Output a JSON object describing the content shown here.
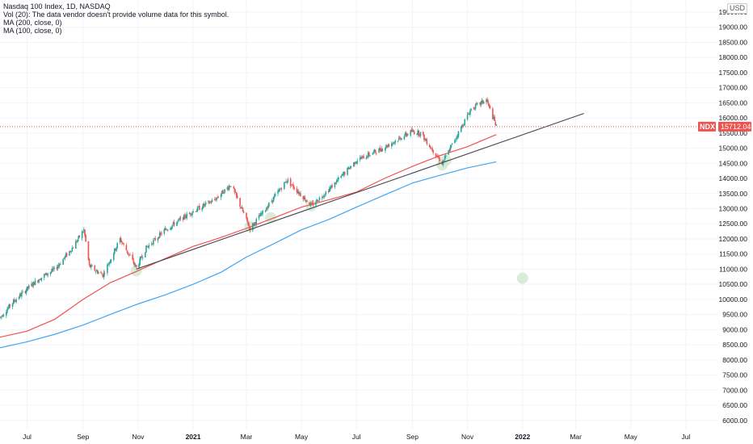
{
  "legend": {
    "title": "Nasdaq 100 Index, 1D, NASDAQ",
    "volume_note": "Vol (20): The data vendor doesn't provide volume data for this symbol.",
    "ma200": "MA (200, close, 0)",
    "ma100": "MA (100, close, 0)"
  },
  "currency": "USD",
  "price_tag": {
    "symbol": "NDX",
    "value": "15712.04"
  },
  "colors": {
    "up": "#26a69a",
    "down": "#ef5350",
    "ma100": "#ef5350",
    "ma200": "#42a5f5",
    "trendline": "#434651",
    "highlight": "#c8e6c9",
    "grid": "#f0f3fa",
    "axis_text": "#131722"
  },
  "chart_data": {
    "type": "candlestick",
    "title": "Nasdaq 100 Index, 1D, NASDAQ",
    "x_tick_labels": [
      "Jul",
      "Sep",
      "Nov",
      "2021",
      "Mar",
      "May",
      "Jul",
      "Sep",
      "Nov",
      "2022",
      "Mar",
      "May",
      "Jul"
    ],
    "y_tick_labels": [
      "6000.00",
      "6500.00",
      "7000.00",
      "7500.00",
      "8000.00",
      "8500.00",
      "9000.00",
      "9500.00",
      "10000.00",
      "10500.00",
      "11000.00",
      "11500.00",
      "12000.00",
      "12500.00",
      "13000.00",
      "13500.00",
      "14000.00",
      "14500.00",
      "15000.00",
      "15500.00",
      "16000.00",
      "16500.00",
      "17000.00",
      "17500.00",
      "18000.00",
      "18500.00",
      "19000.00",
      "19500.00"
    ],
    "y_ticks": [
      6000,
      6500,
      7000,
      7500,
      8000,
      8500,
      9000,
      9500,
      10000,
      10500,
      11000,
      11500,
      12000,
      12500,
      13000,
      13500,
      14000,
      14500,
      15000,
      15500,
      16000,
      16500,
      17000,
      17500,
      18000,
      18500,
      19000,
      19500
    ],
    "x_range": [
      "2020-06-01",
      "2022-08-05"
    ],
    "ylim": [
      5700,
      19900
    ],
    "last_price": 15712.04,
    "close_path": [
      {
        "date": "2020-06-01",
        "v": 9400
      },
      {
        "date": "2020-06-15",
        "v": 9900
      },
      {
        "date": "2020-07-01",
        "v": 10350
      },
      {
        "date": "2020-07-15",
        "v": 10700
      },
      {
        "date": "2020-08-01",
        "v": 11000
      },
      {
        "date": "2020-08-20",
        "v": 11700
      },
      {
        "date": "2020-09-02",
        "v": 12300
      },
      {
        "date": "2020-09-08",
        "v": 11100
      },
      {
        "date": "2020-09-23",
        "v": 10800
      },
      {
        "date": "2020-10-12",
        "v": 12000
      },
      {
        "date": "2020-10-30",
        "v": 11050
      },
      {
        "date": "2020-11-10",
        "v": 11700
      },
      {
        "date": "2020-12-01",
        "v": 12300
      },
      {
        "date": "2020-12-31",
        "v": 12900
      },
      {
        "date": "2021-01-25",
        "v": 13300
      },
      {
        "date": "2021-02-12",
        "v": 13800
      },
      {
        "date": "2021-03-05",
        "v": 12350
      },
      {
        "date": "2021-03-20",
        "v": 12900
      },
      {
        "date": "2021-04-15",
        "v": 13950
      },
      {
        "date": "2021-05-12",
        "v": 13100
      },
      {
        "date": "2021-06-01",
        "v": 13650
      },
      {
        "date": "2021-07-01",
        "v": 14600
      },
      {
        "date": "2021-07-30",
        "v": 15000
      },
      {
        "date": "2021-08-31",
        "v": 15550
      },
      {
        "date": "2021-09-10",
        "v": 15500
      },
      {
        "date": "2021-10-04",
        "v": 14500
      },
      {
        "date": "2021-10-20",
        "v": 15400
      },
      {
        "date": "2021-11-05",
        "v": 16300
      },
      {
        "date": "2021-11-22",
        "v": 16600
      },
      {
        "date": "2021-12-03",
        "v": 15712
      }
    ],
    "series": [
      {
        "name": "MA (100, close, 0)",
        "points": [
          {
            "date": "2020-06-01",
            "v": 8750
          },
          {
            "date": "2020-07-01",
            "v": 8950
          },
          {
            "date": "2020-08-01",
            "v": 9350
          },
          {
            "date": "2020-09-01",
            "v": 10000
          },
          {
            "date": "2020-10-01",
            "v": 10550
          },
          {
            "date": "2020-11-01",
            "v": 10950
          },
          {
            "date": "2020-12-01",
            "v": 11350
          },
          {
            "date": "2021-01-01",
            "v": 11750
          },
          {
            "date": "2021-02-01",
            "v": 12050
          },
          {
            "date": "2021-03-01",
            "v": 12350
          },
          {
            "date": "2021-04-01",
            "v": 12700
          },
          {
            "date": "2021-05-01",
            "v": 13050
          },
          {
            "date": "2021-06-01",
            "v": 13300
          },
          {
            "date": "2021-07-01",
            "v": 13550
          },
          {
            "date": "2021-08-01",
            "v": 14000
          },
          {
            "date": "2021-09-01",
            "v": 14400
          },
          {
            "date": "2021-10-01",
            "v": 14750
          },
          {
            "date": "2021-11-01",
            "v": 15050
          },
          {
            "date": "2021-12-03",
            "v": 15450
          }
        ]
      },
      {
        "name": "MA (200, close, 0)",
        "points": [
          {
            "date": "2020-06-01",
            "v": 8400
          },
          {
            "date": "2020-07-01",
            "v": 8600
          },
          {
            "date": "2020-08-01",
            "v": 8850
          },
          {
            "date": "2020-09-01",
            "v": 9150
          },
          {
            "date": "2020-10-01",
            "v": 9500
          },
          {
            "date": "2020-11-01",
            "v": 9850
          },
          {
            "date": "2020-12-01",
            "v": 10150
          },
          {
            "date": "2021-01-01",
            "v": 10500
          },
          {
            "date": "2021-02-01",
            "v": 10900
          },
          {
            "date": "2021-03-01",
            "v": 11400
          },
          {
            "date": "2021-04-01",
            "v": 11850
          },
          {
            "date": "2021-05-01",
            "v": 12300
          },
          {
            "date": "2021-06-01",
            "v": 12650
          },
          {
            "date": "2021-07-01",
            "v": 13050
          },
          {
            "date": "2021-08-01",
            "v": 13450
          },
          {
            "date": "2021-09-01",
            "v": 13850
          },
          {
            "date": "2021-10-01",
            "v": 14100
          },
          {
            "date": "2021-11-01",
            "v": 14350
          },
          {
            "date": "2021-12-03",
            "v": 14550
          }
        ]
      }
    ],
    "trendline": {
      "start": {
        "date": "2020-10-30",
        "v": 11000
      },
      "end": {
        "date": "2022-03-10",
        "v": 16150
      }
    },
    "highlight_points": [
      {
        "date": "2020-10-30",
        "v": 10950
      },
      {
        "date": "2021-03-05",
        "v": 12400
      },
      {
        "date": "2021-03-28",
        "v": 12700
      },
      {
        "date": "2021-05-12",
        "v": 13100
      },
      {
        "date": "2021-10-04",
        "v": 14450
      },
      {
        "date": "2021-10-08",
        "v": 14600
      },
      {
        "date": "2022-01-01",
        "v": 10700
      }
    ]
  }
}
